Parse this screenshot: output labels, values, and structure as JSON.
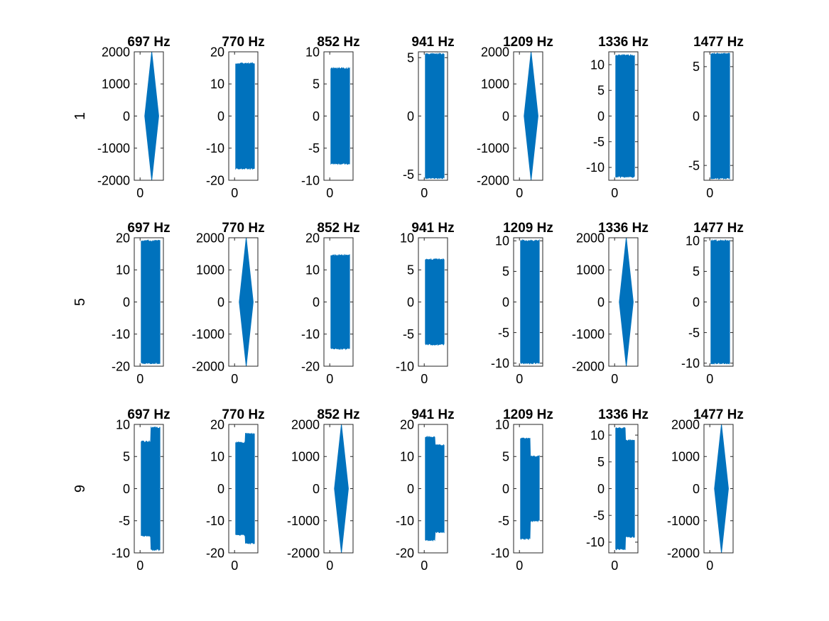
{
  "figure": {
    "background": "#ffffff",
    "series_color": "#0072bd",
    "axis_color": "#262626",
    "chart_type": "area",
    "note_layout": "3 rows x 7 columns of subplots"
  },
  "chart_data": {
    "type": "area",
    "column_titles": [
      "697 Hz",
      "770 Hz",
      "852 Hz",
      "941 Hz",
      "1209 Hz",
      "1336 Hz",
      "1477 Hz"
    ],
    "rows": [
      {
        "ylabel": "1",
        "panels": [
          {
            "title": "697 Hz",
            "shape": "diamond",
            "ylim": [
              -2000,
              2000
            ],
            "yticks": [
              "-2000",
              "-1000",
              "0",
              "1000",
              "2000"
            ],
            "xtick": "0",
            "x_range": [
              0.2,
              0.8
            ],
            "envelope": [
              {
                "x": 0.2,
                "y": 0
              },
              {
                "x": 0.5,
                "y": 2000
              },
              {
                "x": 0.8,
                "y": 0
              }
            ]
          },
          {
            "title": "770 Hz",
            "shape": "block",
            "ylim": [
              -20,
              20
            ],
            "yticks": [
              "-20",
              "-10",
              "0",
              "10",
              "20"
            ],
            "xtick": "0",
            "x_range": [
              0.05,
              0.85
            ],
            "envelope": [
              {
                "x": 0.05,
                "y": 16.3
              },
              {
                "x": 0.85,
                "y": 16.3
              }
            ]
          },
          {
            "title": "852 Hz",
            "shape": "block",
            "ylim": [
              -10,
              10
            ],
            "yticks": [
              "-10",
              "-5",
              "0",
              "5",
              "10"
            ],
            "xtick": "0",
            "x_range": [
              0.05,
              0.85
            ],
            "envelope": [
              {
                "x": 0.05,
                "y": 7.4
              },
              {
                "x": 0.85,
                "y": 7.4
              }
            ]
          },
          {
            "title": "941 Hz",
            "shape": "block",
            "ylim": [
              -5.5,
              5.5
            ],
            "yticks": [
              "-5",
              "0",
              "5"
            ],
            "xtick": "0",
            "x_range": [
              0.05,
              0.85
            ],
            "envelope": [
              {
                "x": 0.05,
                "y": 5.3
              },
              {
                "x": 0.85,
                "y": 5.3
              }
            ]
          },
          {
            "title": "1209 Hz",
            "shape": "diamond",
            "ylim": [
              -2000,
              2000
            ],
            "yticks": [
              "-2000",
              "-1000",
              "0",
              "1000",
              "2000"
            ],
            "xtick": "0",
            "x_range": [
              0.2,
              0.8
            ],
            "envelope": [
              {
                "x": 0.2,
                "y": 0
              },
              {
                "x": 0.5,
                "y": 2000
              },
              {
                "x": 0.8,
                "y": 0
              }
            ]
          },
          {
            "title": "1336 Hz",
            "shape": "block",
            "ylim": [
              -12.5,
              12.5
            ],
            "yticks": [
              "-10",
              "-5",
              "0",
              "5",
              "10"
            ],
            "xtick": "0",
            "x_range": [
              0.05,
              0.85
            ],
            "envelope": [
              {
                "x": 0.05,
                "y": 11.8
              },
              {
                "x": 0.85,
                "y": 11.8
              }
            ]
          },
          {
            "title": "1477 Hz",
            "shape": "block",
            "ylim": [
              -6.5,
              6.5
            ],
            "yticks": [
              "-5",
              "0",
              "5"
            ],
            "xtick": "0",
            "x_range": [
              0.05,
              0.85
            ],
            "envelope": [
              {
                "x": 0.05,
                "y": 6.3
              },
              {
                "x": 0.85,
                "y": 6.3
              }
            ]
          }
        ]
      },
      {
        "ylabel": "5",
        "panels": [
          {
            "title": "697 Hz",
            "shape": "block",
            "ylim": [
              -20,
              20
            ],
            "yticks": [
              "-20",
              "-10",
              "0",
              "10",
              "20"
            ],
            "xtick": "0",
            "x_range": [
              0.05,
              0.85
            ],
            "envelope": [
              {
                "x": 0.05,
                "y": 19
              },
              {
                "x": 0.85,
                "y": 19
              }
            ]
          },
          {
            "title": "770 Hz",
            "shape": "diamond",
            "ylim": [
              -2000,
              2000
            ],
            "yticks": [
              "-2000",
              "-1000",
              "0",
              "1000",
              "2000"
            ],
            "xtick": "0",
            "x_range": [
              0.2,
              0.8
            ],
            "envelope": [
              {
                "x": 0.2,
                "y": 0
              },
              {
                "x": 0.5,
                "y": 2000
              },
              {
                "x": 0.8,
                "y": 0
              }
            ]
          },
          {
            "title": "852 Hz",
            "shape": "block",
            "ylim": [
              -20,
              20
            ],
            "yticks": [
              "-20",
              "-10",
              "0",
              "10",
              "20"
            ],
            "xtick": "0",
            "x_range": [
              0.05,
              0.85
            ],
            "envelope": [
              {
                "x": 0.05,
                "y": 14.5
              },
              {
                "x": 0.85,
                "y": 14.5
              }
            ]
          },
          {
            "title": "941 Hz",
            "shape": "block",
            "ylim": [
              -10,
              10
            ],
            "yticks": [
              "-10",
              "-5",
              "0",
              "5",
              "10"
            ],
            "xtick": "0",
            "x_range": [
              0.05,
              0.85
            ],
            "envelope": [
              {
                "x": 0.05,
                "y": 6.6
              },
              {
                "x": 0.85,
                "y": 6.6
              }
            ]
          },
          {
            "title": "1209 Hz",
            "shape": "block",
            "ylim": [
              -10.5,
              10.5
            ],
            "yticks": [
              "-10",
              "-5",
              "0",
              "5",
              "10"
            ],
            "xtick": "0",
            "x_range": [
              0.05,
              0.85
            ],
            "envelope": [
              {
                "x": 0.05,
                "y": 10
              },
              {
                "x": 0.85,
                "y": 10
              }
            ]
          },
          {
            "title": "1336 Hz",
            "shape": "diamond",
            "ylim": [
              -2000,
              2000
            ],
            "yticks": [
              "-2000",
              "-1000",
              "0",
              "1000",
              "2000"
            ],
            "xtick": "0",
            "x_range": [
              0.2,
              0.8
            ],
            "envelope": [
              {
                "x": 0.2,
                "y": 0
              },
              {
                "x": 0.5,
                "y": 2000
              },
              {
                "x": 0.8,
                "y": 0
              }
            ]
          },
          {
            "title": "1477 Hz",
            "shape": "block",
            "ylim": [
              -10.5,
              10.5
            ],
            "yticks": [
              "-10",
              "-5",
              "0",
              "5",
              "10"
            ],
            "xtick": "0",
            "x_range": [
              0.05,
              0.85
            ],
            "envelope": [
              {
                "x": 0.05,
                "y": 10
              },
              {
                "x": 0.85,
                "y": 10
              }
            ]
          }
        ]
      },
      {
        "ylabel": "9",
        "panels": [
          {
            "title": "697 Hz",
            "shape": "step",
            "ylim": [
              -10,
              10
            ],
            "yticks": [
              "-10",
              "-5",
              "0",
              "5",
              "10"
            ],
            "xtick": "0",
            "x_range": [
              0.05,
              0.85
            ],
            "envelope": [
              {
                "x": 0.05,
                "y": 7.3
              },
              {
                "x": 0.45,
                "y": 7.3
              },
              {
                "x": 0.45,
                "y": 9.5
              },
              {
                "x": 0.85,
                "y": 9.5
              }
            ]
          },
          {
            "title": "770 Hz",
            "shape": "step",
            "ylim": [
              -20,
              20
            ],
            "yticks": [
              "-20",
              "-10",
              "0",
              "10",
              "20"
            ],
            "xtick": "0",
            "x_range": [
              0.05,
              0.85
            ],
            "envelope": [
              {
                "x": 0.05,
                "y": 14.3
              },
              {
                "x": 0.45,
                "y": 14.3
              },
              {
                "x": 0.45,
                "y": 17
              },
              {
                "x": 0.85,
                "y": 17
              }
            ]
          },
          {
            "title": "852 Hz",
            "shape": "diamond",
            "ylim": [
              -2000,
              2000
            ],
            "yticks": [
              "-2000",
              "-1000",
              "0",
              "1000",
              "2000"
            ],
            "xtick": "0",
            "x_range": [
              0.2,
              0.8
            ],
            "envelope": [
              {
                "x": 0.2,
                "y": 0
              },
              {
                "x": 0.5,
                "y": 2000
              },
              {
                "x": 0.8,
                "y": 0
              }
            ]
          },
          {
            "title": "941 Hz",
            "shape": "step",
            "ylim": [
              -20,
              20
            ],
            "yticks": [
              "-20",
              "-10",
              "0",
              "10",
              "20"
            ],
            "xtick": "0",
            "x_range": [
              0.05,
              0.85
            ],
            "envelope": [
              {
                "x": 0.05,
                "y": 16
              },
              {
                "x": 0.45,
                "y": 16
              },
              {
                "x": 0.45,
                "y": 13.5
              },
              {
                "x": 0.85,
                "y": 13.5
              }
            ]
          },
          {
            "title": "1209 Hz",
            "shape": "step",
            "ylim": [
              -10,
              10
            ],
            "yticks": [
              "-10",
              "-5",
              "0",
              "5",
              "10"
            ],
            "xtick": "0",
            "x_range": [
              0.05,
              0.85
            ],
            "envelope": [
              {
                "x": 0.05,
                "y": 7.8
              },
              {
                "x": 0.45,
                "y": 7.8
              },
              {
                "x": 0.45,
                "y": 5
              },
              {
                "x": 0.85,
                "y": 5
              }
            ]
          },
          {
            "title": "1336 Hz",
            "shape": "step",
            "ylim": [
              -12,
              12
            ],
            "yticks": [
              "-10",
              "-5",
              "0",
              "5",
              "10"
            ],
            "xtick": "0",
            "x_range": [
              0.05,
              0.85
            ],
            "envelope": [
              {
                "x": 0.05,
                "y": 11.3
              },
              {
                "x": 0.45,
                "y": 11.3
              },
              {
                "x": 0.45,
                "y": 9
              },
              {
                "x": 0.85,
                "y": 9
              }
            ]
          },
          {
            "title": "1477 Hz",
            "shape": "diamond",
            "ylim": [
              -2000,
              2000
            ],
            "yticks": [
              "-2000",
              "-1000",
              "0",
              "1000",
              "2000"
            ],
            "xtick": "0",
            "x_range": [
              0.2,
              0.8
            ],
            "envelope": [
              {
                "x": 0.2,
                "y": 0
              },
              {
                "x": 0.5,
                "y": 2000
              },
              {
                "x": 0.8,
                "y": 0
              }
            ]
          }
        ]
      }
    ],
    "xlim": [
      -0.25,
      1.0
    ],
    "grid": false,
    "legend": "none"
  }
}
